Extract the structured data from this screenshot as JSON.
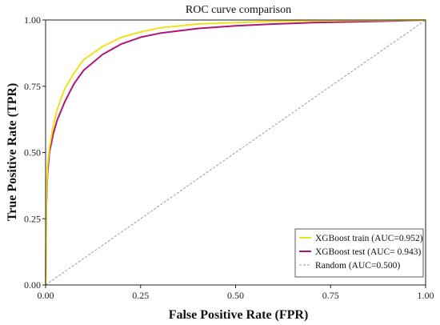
{
  "chart_data": {
    "type": "line",
    "title": "ROC curve comparison",
    "xlabel": "False Positive Rate (FPR)",
    "ylabel": "True Positive Rate (TPR)",
    "xlim": [
      0,
      1
    ],
    "ylim": [
      0,
      1
    ],
    "x_ticks": [
      "0.00",
      "0.25",
      "0.50",
      "0.75",
      "1.00"
    ],
    "y_ticks": [
      "0.00",
      "0.25",
      "0.50",
      "0.75",
      "1.00"
    ],
    "grid": false,
    "legend_position": "bottom-right",
    "series": [
      {
        "name": "XGBoost train (AUC=0.952)",
        "color": "#f2e01a",
        "style": "solid",
        "x": [
          0,
          0.002,
          0.005,
          0.01,
          0.02,
          0.03,
          0.05,
          0.075,
          0.1,
          0.15,
          0.2,
          0.25,
          0.3,
          0.4,
          0.5,
          0.6,
          0.7,
          0.8,
          0.9,
          1.0
        ],
        "y": [
          0,
          0.33,
          0.45,
          0.52,
          0.6,
          0.66,
          0.74,
          0.8,
          0.85,
          0.9,
          0.935,
          0.955,
          0.97,
          0.985,
          0.99,
          0.995,
          0.997,
          0.998,
          0.999,
          1.0
        ]
      },
      {
        "name": "XGBoost test (AUC= 0.943)",
        "color": "#b0157a",
        "style": "solid",
        "x": [
          0,
          0.002,
          0.005,
          0.01,
          0.02,
          0.03,
          0.05,
          0.075,
          0.1,
          0.15,
          0.2,
          0.25,
          0.3,
          0.4,
          0.5,
          0.6,
          0.7,
          0.8,
          0.9,
          1.0
        ],
        "y": [
          0,
          0.3,
          0.42,
          0.5,
          0.57,
          0.62,
          0.69,
          0.76,
          0.81,
          0.87,
          0.91,
          0.935,
          0.95,
          0.968,
          0.978,
          0.985,
          0.99,
          0.993,
          0.996,
          1.0
        ]
      },
      {
        "name": "Random (AUC=0.500)",
        "color": "#9a9a9a",
        "style": "dashed",
        "x": [
          0,
          1
        ],
        "y": [
          0,
          1
        ]
      }
    ]
  }
}
